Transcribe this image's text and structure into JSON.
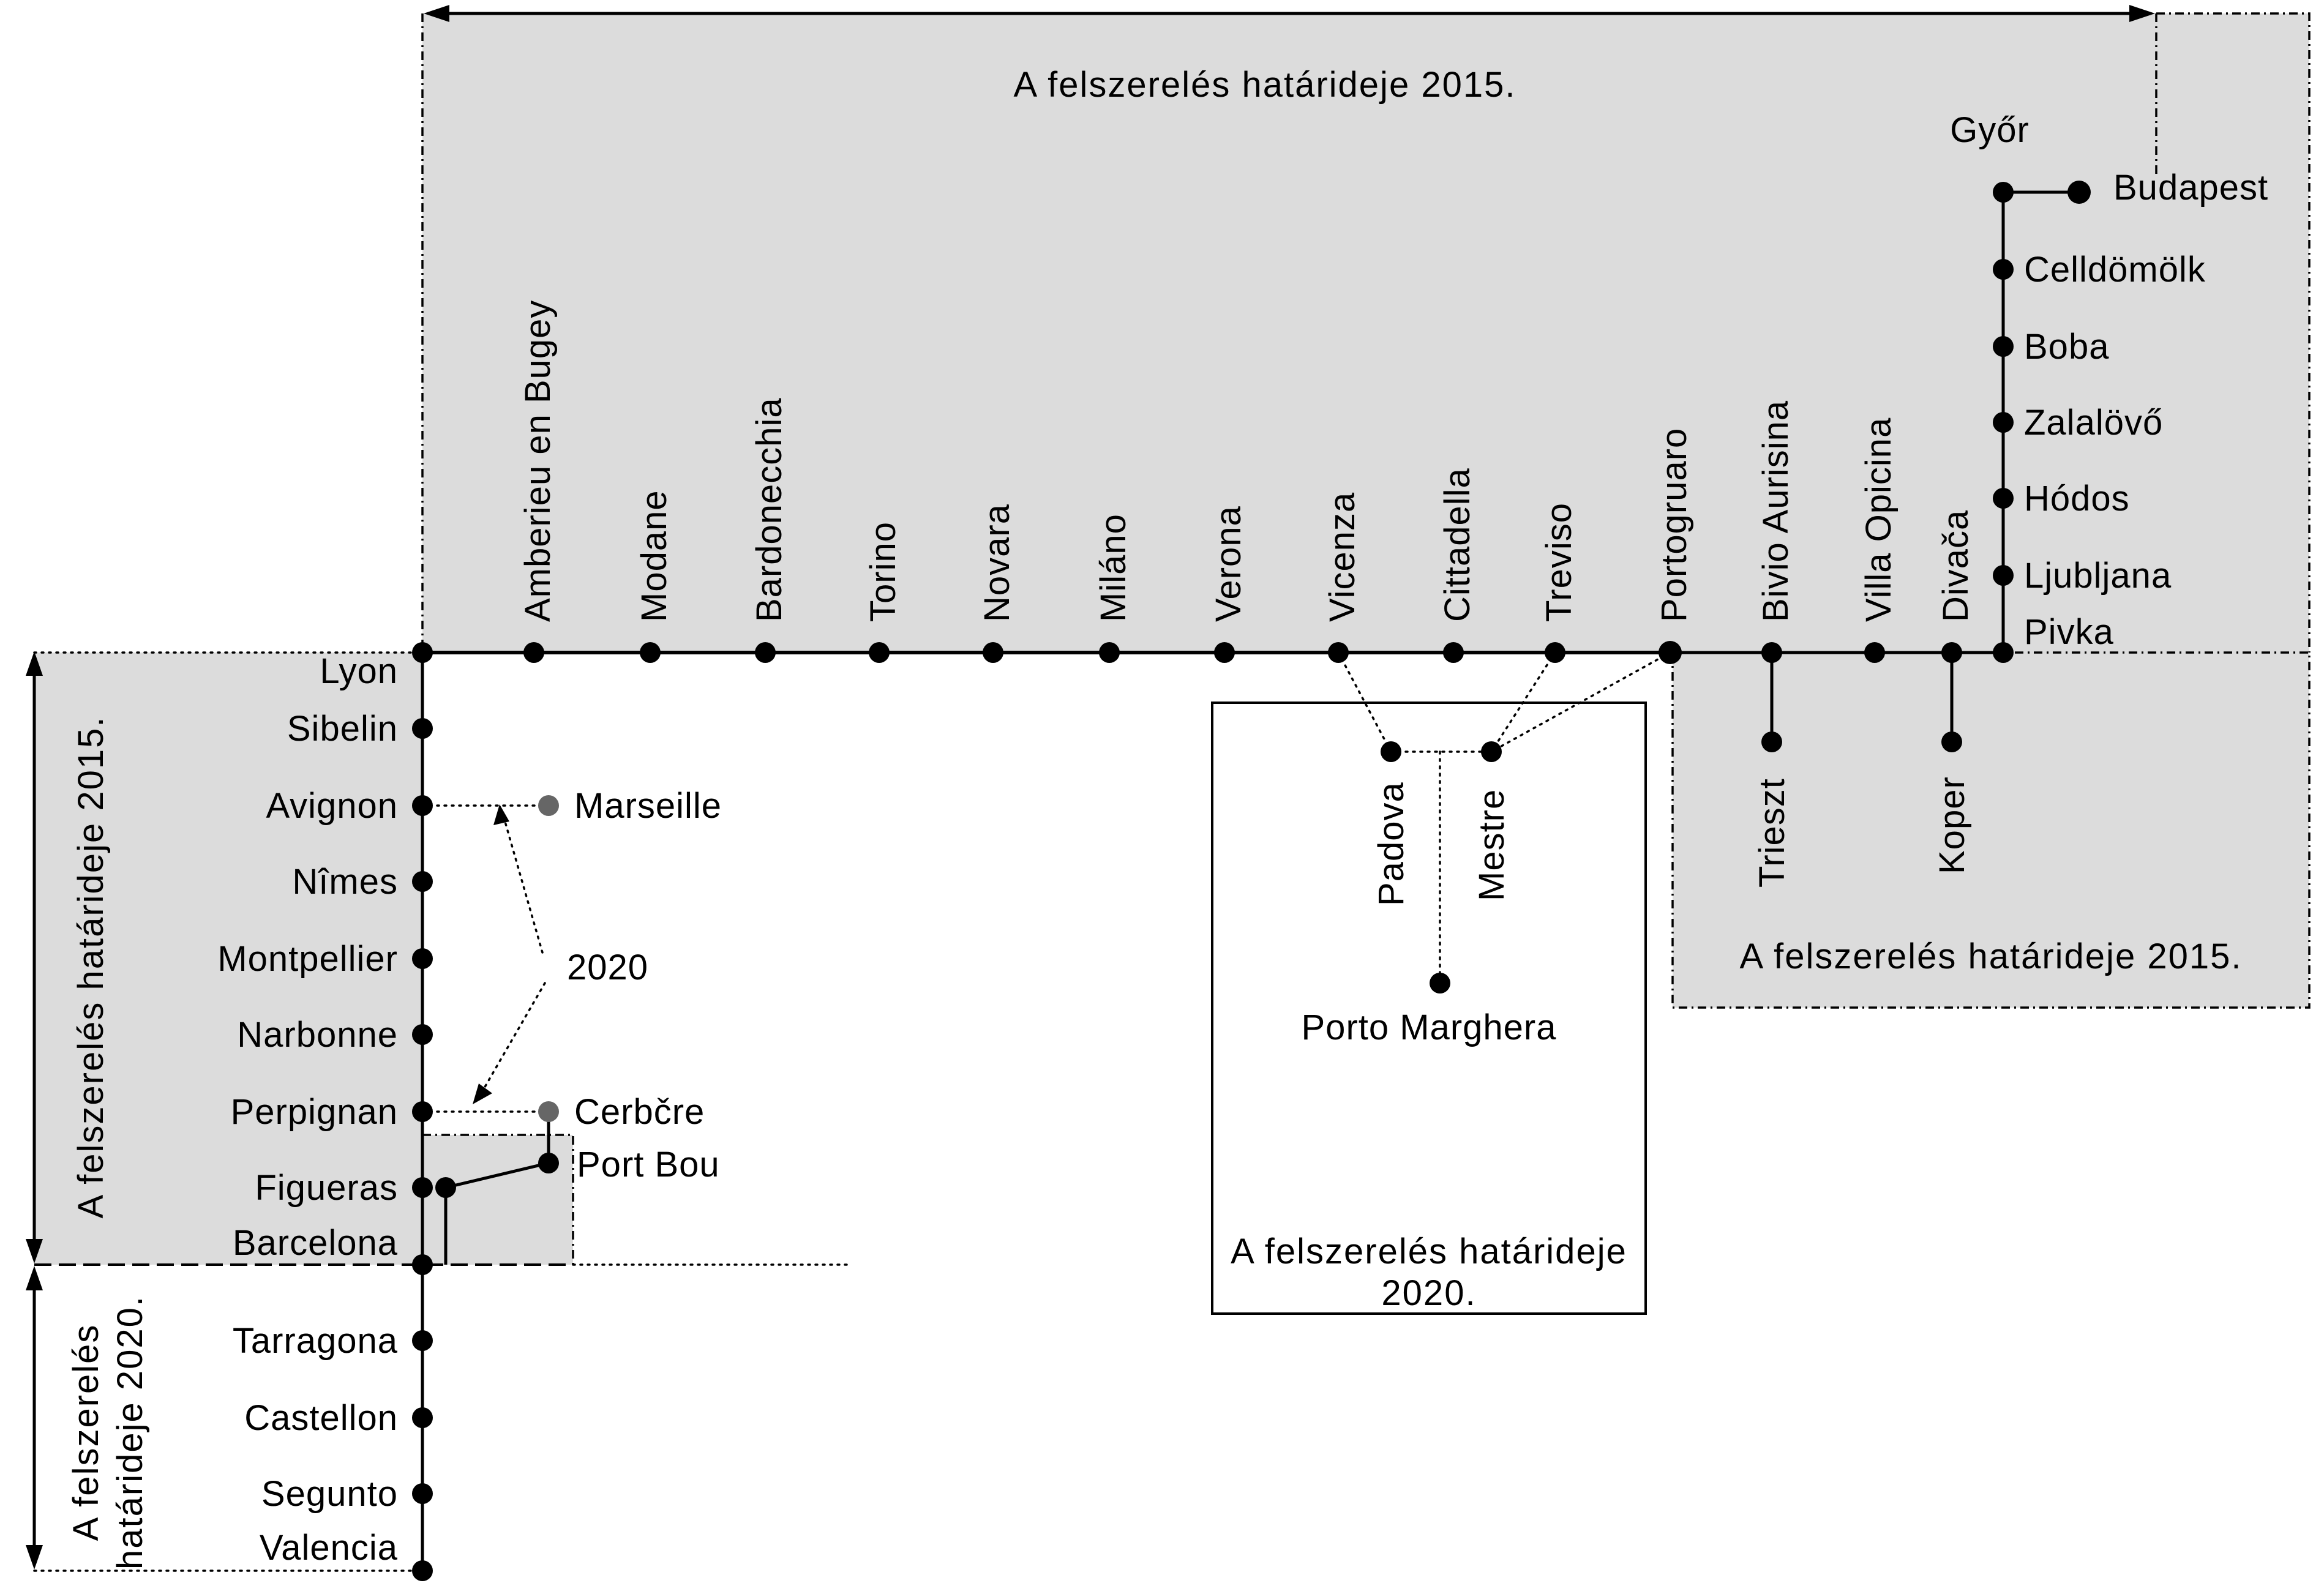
{
  "regions": {
    "top_2015": "A felszerelés határideje 2015.",
    "right_2015": "A felszerelés határideje 2015.",
    "middle_2020_line1": "A felszerelés határideje",
    "middle_2020_line2": "2020.",
    "left_2015": "A felszerelés határideje 2015.",
    "left_2020_line1": "A felszerelés",
    "left_2020_line2": "határideje 2020."
  },
  "annotation_2020": "2020",
  "stations": {
    "lyon": "Lyon",
    "amberieu": "Amberieu en Bugey",
    "modane": "Modane",
    "bardonecchia": "Bardonecchia",
    "torino": "Torino",
    "novara": "Novara",
    "milano": "Miláno",
    "verona": "Verona",
    "vicenza": "Vicenza",
    "cittadella": "Cittadella",
    "treviso": "Treviso",
    "portogruaro": "Portogruaro",
    "bivio_aurisina": "Bivio Aurisina",
    "villa_opicina": "Villa Opicina",
    "divaca": "Divača",
    "pivka": "Pivka",
    "ljubljana": "Ljubljana",
    "hodos": "Hódos",
    "zalalovo": "Zalalövő",
    "boba": "Boba",
    "celldomolk": "Celldömölk",
    "gyor": "Győr",
    "budapest": "Budapest",
    "trieszt": "Trieszt",
    "koper": "Koper",
    "padova": "Padova",
    "mestre": "Mestre",
    "porto_marghera": "Porto Marghera",
    "sibelin": "Sibelin",
    "avignon": "Avignon",
    "marseille": "Marseille",
    "nimes": "Nîmes",
    "montpellier": "Montpellier",
    "narbonne": "Narbonne",
    "perpignan": "Perpignan",
    "cerbere": "Cerbčre",
    "figueras": "Figueras",
    "port_bou": "Port Bou",
    "barcelona": "Barcelona",
    "tarragona": "Tarragona",
    "castellon": "Castellon",
    "segunto": "Segunto",
    "valencia": "Valencia"
  },
  "colors": {
    "shading": "#dcdcdc",
    "line": "#000000",
    "marker_grey": "#666666"
  }
}
